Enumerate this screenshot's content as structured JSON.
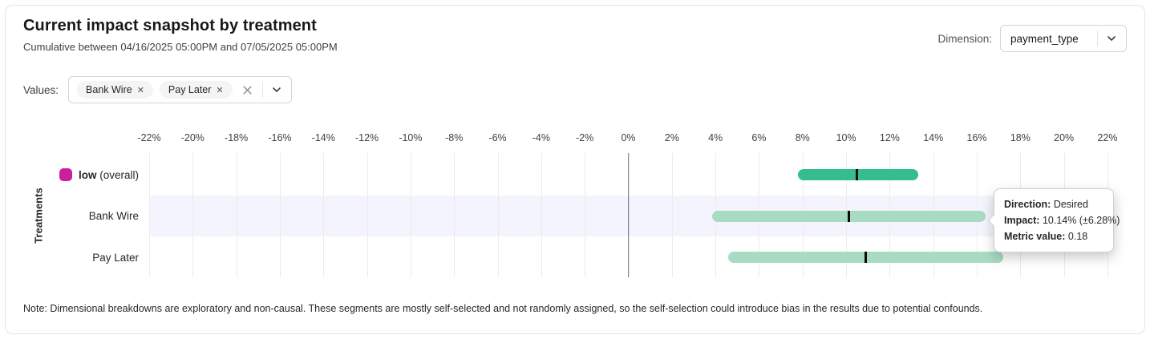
{
  "header": {
    "title": "Current impact snapshot by treatment",
    "subtitle": "Cumulative between 04/16/2025 05:00PM and 07/05/2025 05:00PM",
    "dimension_label": "Dimension:",
    "dimension_value": "payment_type"
  },
  "filters": {
    "values_label": "Values:",
    "chips": [
      "Bank Wire",
      "Pay Later"
    ]
  },
  "chart_data": {
    "type": "bar",
    "subtype": "horizontal-range-bars-with-confidence-intervals",
    "title": "Current impact snapshot by treatment",
    "xlabel": "",
    "ylabel": "Treatments",
    "axis": {
      "min": -22,
      "max": 22,
      "step": 2,
      "unit": "%"
    },
    "grid": true,
    "rows": [
      {
        "label": "low",
        "label_note": "(overall)",
        "bold": true,
        "swatch_color": "#cb1f9e",
        "bar_color": "#35bd8e",
        "impact": 10.5,
        "ci_low": 7.8,
        "ci_high": 13.3,
        "highlighted": false
      },
      {
        "label": "Bank Wire",
        "label_note": "",
        "bold": false,
        "swatch_color": "",
        "bar_color": "#a8dcc2",
        "impact": 10.14,
        "ci_low": 3.86,
        "ci_high": 16.42,
        "highlighted": true
      },
      {
        "label": "Pay Later",
        "label_note": "",
        "bold": false,
        "swatch_color": "",
        "bar_color": "#a8dcc2",
        "impact": 10.9,
        "ci_low": 4.6,
        "ci_high": 17.2,
        "highlighted": false
      }
    ]
  },
  "tooltip": {
    "direction_label": "Direction:",
    "direction_value": "Desired",
    "impact_label": "Impact:",
    "impact_value": "10.14% (±6.28%)",
    "metric_label": "Metric value:",
    "metric_value": "0.18"
  },
  "note": "Note: Dimensional breakdowns are exploratory and non-causal. These segments are mostly self-selected and not randomly assigned, so the self-selection could introduce bias in the results due to potential confounds.",
  "colors": {
    "overall_bar": "#35bd8e",
    "segment_bar": "#a8dcc2",
    "median_tick": "#0b0b0b",
    "legend_swatch": "#cb1f9e",
    "highlight_band": "#f0f0fb",
    "zero_line": "#6b6b74",
    "gridline": "#ececee"
  }
}
